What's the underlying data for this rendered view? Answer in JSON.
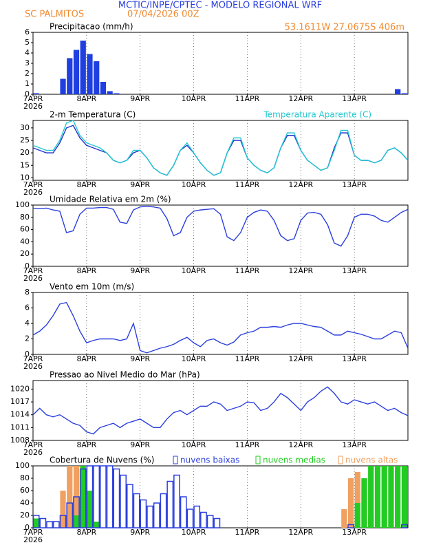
{
  "header": {
    "title": "MCTIC/INPE/CPTEC - MODELO REGIONAL WRF",
    "station": "SC PALMITOS",
    "run": "07/04/2026 00Z",
    "location": "53.1611W 27.0675S 406m"
  },
  "time_axis": {
    "days": [
      "7APR",
      "8APR",
      "9APR",
      "10APR",
      "11APR",
      "12APR",
      "13APR"
    ],
    "year": "2026"
  },
  "chart_data": [
    {
      "type": "bar",
      "title": "Precipitacao (mm/h)",
      "color": "#1f3fe0",
      "ylim": [
        0,
        6
      ],
      "yticks": [
        0,
        1,
        2,
        3,
        4,
        5,
        6
      ],
      "grid": true,
      "values": [
        0.1,
        0,
        0,
        0,
        1.5,
        3.5,
        4.3,
        5.2,
        3.9,
        3.2,
        1.2,
        0.3,
        0.1,
        0,
        0,
        0,
        0,
        0,
        0,
        0,
        0,
        0,
        0,
        0,
        0,
        0,
        0,
        0,
        0,
        0,
        0,
        0,
        0,
        0,
        0,
        0,
        0,
        0,
        0,
        0,
        0,
        0,
        0,
        0,
        0,
        0,
        0,
        0,
        0,
        0,
        0,
        0,
        0,
        0,
        0.5,
        0.1
      ]
    },
    {
      "type": "line",
      "title": "2-m Temperatura (C)",
      "ylim": [
        9,
        33
      ],
      "yticks": [
        10,
        15,
        20,
        25,
        30
      ],
      "grid": true,
      "series": [
        {
          "color": "#2233cc",
          "values": [
            22,
            21,
            20,
            20,
            24,
            30,
            31,
            26,
            23,
            22,
            21,
            20,
            17,
            16,
            17,
            20,
            21,
            18,
            14,
            12,
            11,
            15,
            21,
            23,
            20,
            16,
            13,
            11,
            12,
            20,
            25,
            25,
            18,
            15,
            13,
            12,
            14,
            22,
            27,
            27,
            21,
            17,
            15,
            13,
            14,
            22,
            28,
            28,
            19,
            17,
            17,
            16,
            17,
            21,
            22,
            20,
            17
          ]
        },
        {
          "name": "Temperatura Aparente (C)",
          "color": "#22c8d0",
          "values": [
            23,
            22,
            21,
            21,
            25,
            32,
            33,
            27,
            24,
            23,
            22,
            20,
            17,
            16,
            17,
            21,
            21,
            18,
            14,
            12,
            11,
            15,
            21,
            24,
            20,
            16,
            13,
            11,
            12,
            20,
            26,
            26,
            18,
            15,
            13,
            12,
            14,
            22,
            28,
            28,
            21,
            17,
            15,
            13,
            14,
            21,
            29,
            29,
            19,
            17,
            17,
            16,
            17,
            21,
            22,
            20,
            17
          ]
        }
      ]
    },
    {
      "type": "line",
      "title": "Umidade Relativa em 2m (%)",
      "ylim": [
        0,
        100
      ],
      "yticks": [
        0,
        20,
        40,
        60,
        80,
        100
      ],
      "grid": true,
      "series": [
        {
          "color": "#2a3fdd",
          "values": [
            95,
            94,
            95,
            92,
            90,
            55,
            58,
            85,
            95,
            95,
            96,
            96,
            93,
            72,
            70,
            92,
            97,
            98,
            97,
            95,
            78,
            50,
            55,
            80,
            90,
            92,
            93,
            94,
            85,
            48,
            42,
            55,
            80,
            88,
            92,
            90,
            75,
            50,
            42,
            45,
            75,
            87,
            88,
            85,
            68,
            38,
            33,
            50,
            80,
            85,
            85,
            82,
            75,
            72,
            80,
            88,
            93
          ]
        }
      ]
    },
    {
      "type": "line",
      "title": "Vento em 10m (m/s)",
      "ylim": [
        0,
        8
      ],
      "yticks": [
        0,
        2,
        4,
        6,
        8
      ],
      "grid": true,
      "series": [
        {
          "color": "#2a3fdd",
          "values": [
            2.5,
            3,
            3.8,
            5,
            6.5,
            6.7,
            5,
            3,
            1.5,
            1.8,
            2,
            2,
            2,
            1.8,
            2,
            4,
            0.5,
            0.2,
            0.5,
            0.8,
            1,
            1.3,
            1.8,
            2.2,
            1.5,
            1,
            1.8,
            2,
            1.5,
            1.2,
            1.6,
            2.5,
            2.8,
            3,
            3.5,
            3.5,
            3.6,
            3.5,
            3.8,
            4,
            4,
            3.8,
            3.6,
            3.5,
            3,
            2.5,
            2.5,
            3,
            2.8,
            2.6,
            2.3,
            2,
            2,
            2.5,
            3,
            2.8,
            0.8
          ]
        }
      ]
    },
    {
      "type": "line",
      "title": "Pressao ao Nivel Medio do Mar (hPa)",
      "ylim": [
        1008,
        1022
      ],
      "yticks": [
        1008,
        1011,
        1014,
        1017,
        1020
      ],
      "grid": true,
      "series": [
        {
          "color": "#2a3fdd",
          "values": [
            1014,
            1015.5,
            1014,
            1013.5,
            1014,
            1013,
            1012,
            1011.5,
            1010,
            1009.5,
            1011,
            1011.5,
            1012,
            1011,
            1012,
            1012.5,
            1013,
            1012,
            1011,
            1011,
            1013,
            1014.5,
            1015,
            1014,
            1015,
            1016,
            1016,
            1017,
            1016.5,
            1015,
            1015.5,
            1016,
            1017,
            1016.8,
            1015,
            1015.5,
            1017,
            1019,
            1018,
            1016.5,
            1015,
            1017,
            1018,
            1019.5,
            1020.5,
            1019,
            1017,
            1016.5,
            1017.5,
            1017,
            1016.5,
            1017,
            1016,
            1015,
            1015.5,
            1014.5,
            1013.8
          ]
        }
      ]
    },
    {
      "type": "bar",
      "title": "Cobertura de Nuvens (%)",
      "ylim": [
        0,
        100
      ],
      "yticks": [
        0,
        20,
        40,
        60,
        80,
        100
      ],
      "grid": true,
      "series": [
        {
          "name": "nuvens altas",
          "color": "#f0a060",
          "values": [
            0,
            0,
            0,
            0,
            60,
            100,
            100,
            100,
            30,
            0,
            0,
            0,
            0,
            0,
            0,
            0,
            0,
            0,
            0,
            0,
            0,
            0,
            0,
            0,
            0,
            0,
            0,
            0,
            0,
            0,
            0,
            0,
            0,
            0,
            0,
            0,
            0,
            0,
            0,
            0,
            0,
            0,
            0,
            0,
            0,
            0,
            30,
            80,
            90,
            60,
            20,
            0,
            0,
            0,
            0,
            0
          ]
        },
        {
          "name": "nuvens medias",
          "color": "#22cc22",
          "values": [
            15,
            0,
            0,
            0,
            0,
            0,
            20,
            100,
            60,
            10,
            0,
            0,
            0,
            0,
            0,
            0,
            0,
            0,
            0,
            0,
            0,
            0,
            0,
            0,
            0,
            0,
            0,
            0,
            0,
            0,
            0,
            0,
            0,
            0,
            0,
            0,
            0,
            0,
            0,
            0,
            0,
            0,
            0,
            0,
            0,
            0,
            0,
            0,
            40,
            80,
            100,
            100,
            100,
            100,
            100,
            100
          ]
        },
        {
          "name": "nuvens baixas",
          "color": "#2a3fdd",
          "values": [
            20,
            15,
            10,
            10,
            20,
            40,
            50,
            95,
            100,
            100,
            100,
            100,
            95,
            85,
            70,
            55,
            45,
            35,
            40,
            55,
            75,
            85,
            50,
            30,
            35,
            25,
            20,
            15,
            0,
            0,
            0,
            0,
            0,
            0,
            0,
            0,
            0,
            0,
            0,
            0,
            0,
            0,
            0,
            0,
            0,
            0,
            0,
            5,
            0,
            0,
            0,
            0,
            0,
            0,
            0,
            5
          ]
        }
      ]
    }
  ]
}
